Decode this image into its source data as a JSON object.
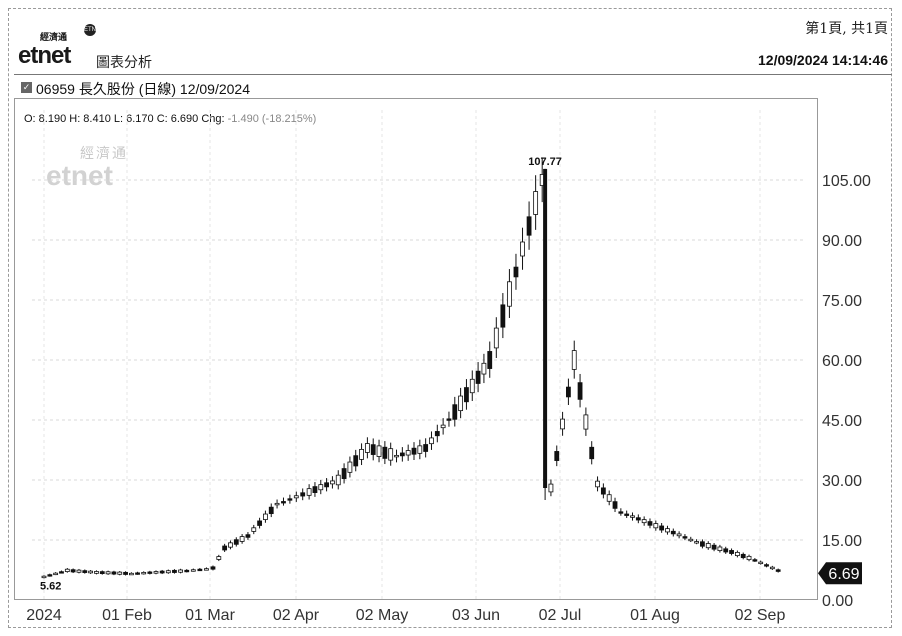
{
  "page": {
    "page_info": "第1頁, 共1頁",
    "logo_small": "經濟通",
    "logo_main": "etnet",
    "header_title": "圖表分析",
    "timestamp": "12/09/2024 14:14:46",
    "stock_line": "06959 長久股份 (日線) 12/09/2024",
    "ohlc_text": "O: 8.190 H: 8.410 L: 6.170 C: 6.690 Chg:",
    "chg_text": "-1.490 (-18.215%)",
    "watermark_cn": "經濟通",
    "watermark_en": "etnet"
  },
  "chart_data": {
    "type": "candlestick",
    "title": "06959 長久股份 (日線) 12/09/2024",
    "xlabel": "",
    "ylabel": "",
    "ylim": [
      0,
      115
    ],
    "y_ticks": [
      "0.00",
      "15.00",
      "30.00",
      "45.00",
      "60.00",
      "75.00",
      "90.00",
      "105.00"
    ],
    "x_ticks": [
      "2024",
      "01 Feb",
      "01 Mar",
      "02 Apr",
      "02 May",
      "03 Jun",
      "02 Jul",
      "01 Aug",
      "02 Sep"
    ],
    "grid": true,
    "annotations": {
      "high_label": "107.77",
      "low_label": "5.62",
      "last_price": "6.69"
    },
    "last": {
      "open": 8.19,
      "high": 8.41,
      "low": 6.17,
      "close": 6.69,
      "change": -1.49,
      "change_pct": -18.215
    },
    "series": [
      {
        "date": "2024-01-02",
        "close": 5.8
      },
      {
        "date": "2024-01-10",
        "close": 7.4
      },
      {
        "date": "2024-01-20",
        "close": 6.9
      },
      {
        "date": "2024-02-01",
        "close": 6.6
      },
      {
        "date": "2024-02-20",
        "close": 7.3
      },
      {
        "date": "2024-02-29",
        "close": 8.0
      },
      {
        "date": "2024-03-04",
        "close": 13.0
      },
      {
        "date": "2024-03-12",
        "close": 16.0
      },
      {
        "date": "2024-03-22",
        "close": 24.0
      },
      {
        "date": "2024-04-02",
        "close": 27.0
      },
      {
        "date": "2024-04-12",
        "close": 30.0
      },
      {
        "date": "2024-04-22",
        "close": 38.0
      },
      {
        "date": "2024-05-02",
        "close": 36.0
      },
      {
        "date": "2024-05-12",
        "close": 38.0
      },
      {
        "date": "2024-05-22",
        "close": 47.0
      },
      {
        "date": "2024-06-03",
        "close": 60.0
      },
      {
        "date": "2024-06-12",
        "close": 82.0
      },
      {
        "date": "2024-06-21",
        "close": 105.0
      },
      {
        "date": "2024-06-24",
        "close": 28.0
      },
      {
        "date": "2024-07-02",
        "close": 60.0
      },
      {
        "date": "2024-07-10",
        "close": 29.0
      },
      {
        "date": "2024-07-18",
        "close": 22.0
      },
      {
        "date": "2024-08-01",
        "close": 18.0
      },
      {
        "date": "2024-08-15",
        "close": 14.0
      },
      {
        "date": "2024-08-25",
        "close": 12.0
      },
      {
        "date": "2024-09-02",
        "close": 10.0
      },
      {
        "date": "2024-09-12",
        "close": 6.69
      }
    ]
  }
}
